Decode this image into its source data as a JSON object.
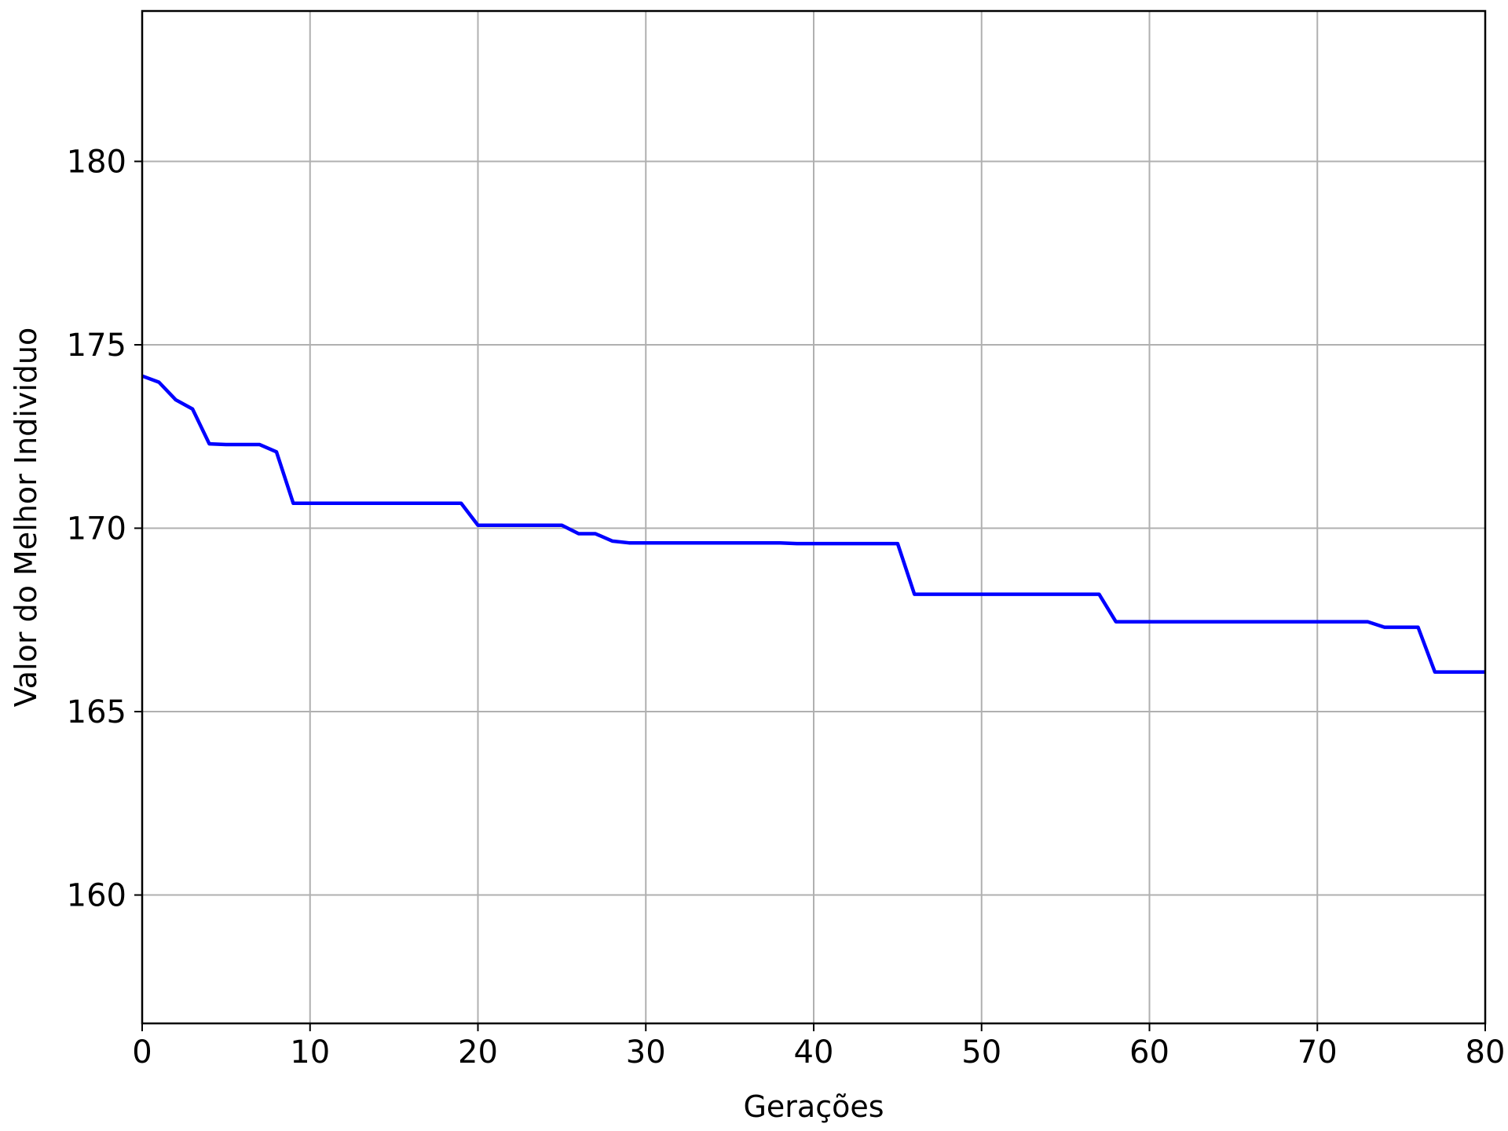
{
  "chart_data": {
    "type": "line",
    "title": "",
    "xlabel": "Gerações",
    "ylabel": "Valor do Melhor Individuo",
    "xlim": [
      0,
      80
    ],
    "ylim": [
      156.5,
      184.1
    ],
    "xticks": [
      0,
      10,
      20,
      30,
      40,
      50,
      60,
      70,
      80
    ],
    "yticks": [
      160,
      165,
      170,
      175,
      180
    ],
    "grid": true,
    "legend": "none",
    "series": [
      {
        "color": "#0000ff",
        "x": [
          0,
          1,
          2,
          3,
          4,
          5,
          6,
          7,
          8,
          9,
          10,
          11,
          12,
          13,
          14,
          15,
          16,
          17,
          18,
          19,
          20,
          21,
          22,
          23,
          24,
          25,
          26,
          27,
          28,
          29,
          30,
          31,
          32,
          33,
          34,
          35,
          36,
          37,
          38,
          39,
          40,
          41,
          42,
          43,
          44,
          45,
          46,
          47,
          48,
          49,
          50,
          51,
          52,
          53,
          54,
          55,
          56,
          57,
          58,
          59,
          60,
          61,
          62,
          63,
          64,
          65,
          66,
          67,
          68,
          69,
          70,
          71,
          72,
          73,
          74,
          75,
          76,
          77,
          78,
          79,
          80
        ],
        "y": [
          174.15,
          173.98,
          173.5,
          173.25,
          172.3,
          172.28,
          172.28,
          172.28,
          172.08,
          170.68,
          170.68,
          170.68,
          170.68,
          170.68,
          170.68,
          170.68,
          170.68,
          170.68,
          170.68,
          170.68,
          170.08,
          170.08,
          170.08,
          170.08,
          170.08,
          170.08,
          169.85,
          169.85,
          169.65,
          169.6,
          169.6,
          169.6,
          169.6,
          169.6,
          169.6,
          169.6,
          169.6,
          169.6,
          169.6,
          169.58,
          169.58,
          169.58,
          169.58,
          169.58,
          169.58,
          169.58,
          168.2,
          168.2,
          168.2,
          168.2,
          168.2,
          168.2,
          168.2,
          168.2,
          168.2,
          168.2,
          168.2,
          168.2,
          167.45,
          167.45,
          167.45,
          167.45,
          167.45,
          167.45,
          167.45,
          167.45,
          167.45,
          167.45,
          167.45,
          167.45,
          167.45,
          167.45,
          167.45,
          167.45,
          167.3,
          167.3,
          167.3,
          166.08,
          166.08,
          166.08,
          166.08
        ]
      }
    ]
  }
}
